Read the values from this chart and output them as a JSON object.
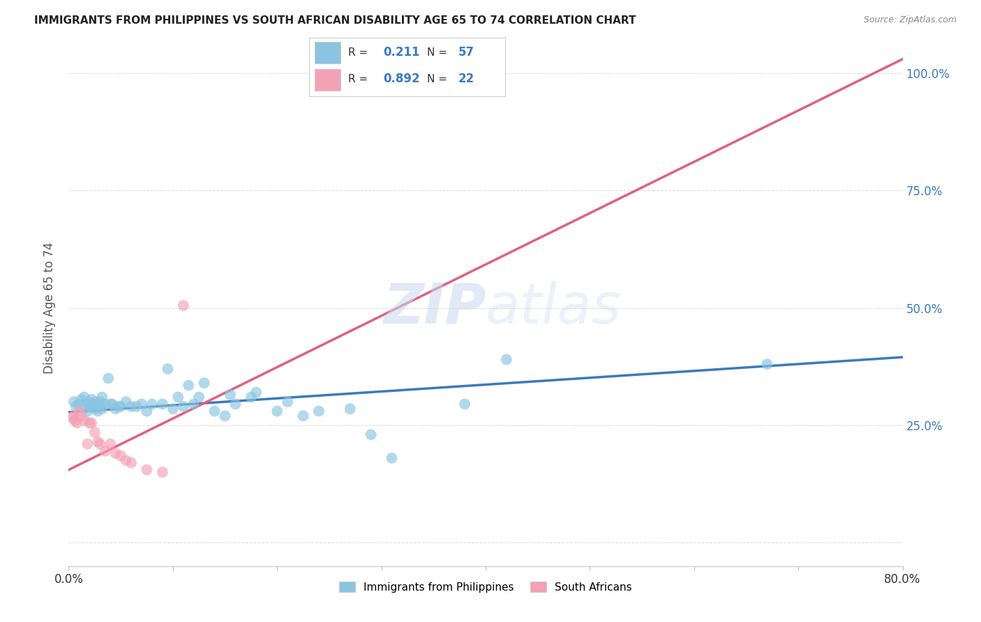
{
  "title": "IMMIGRANTS FROM PHILIPPINES VS SOUTH AFRICAN DISABILITY AGE 65 TO 74 CORRELATION CHART",
  "source": "Source: ZipAtlas.com",
  "ylabel": "Disability Age 65 to 74",
  "x_min": 0.0,
  "x_max": 0.8,
  "y_min": -0.05,
  "y_max": 1.05,
  "x_ticks": [
    0.0,
    0.1,
    0.2,
    0.3,
    0.4,
    0.5,
    0.6,
    0.7,
    0.8
  ],
  "y_ticks": [
    0.0,
    0.25,
    0.5,
    0.75,
    1.0
  ],
  "y_tick_labels": [
    "",
    "25.0%",
    "50.0%",
    "75.0%",
    "100.0%"
  ],
  "watermark": "ZIPatlas",
  "blue_color": "#89c4e1",
  "pink_color": "#f4a0b5",
  "blue_line_color": "#3a7abf",
  "pink_line_color": "#e06080",
  "legend_R_blue": "0.211",
  "legend_N_blue": "57",
  "legend_R_pink": "0.892",
  "legend_N_pink": "22",
  "blue_scatter_x": [
    0.005,
    0.007,
    0.01,
    0.012,
    0.015,
    0.015,
    0.018,
    0.018,
    0.02,
    0.022,
    0.022,
    0.025,
    0.025,
    0.028,
    0.028,
    0.03,
    0.03,
    0.032,
    0.032,
    0.035,
    0.038,
    0.04,
    0.042,
    0.045,
    0.048,
    0.05,
    0.055,
    0.06,
    0.065,
    0.07,
    0.075,
    0.08,
    0.09,
    0.095,
    0.1,
    0.105,
    0.11,
    0.115,
    0.12,
    0.125,
    0.13,
    0.14,
    0.15,
    0.155,
    0.16,
    0.175,
    0.18,
    0.2,
    0.21,
    0.225,
    0.24,
    0.27,
    0.29,
    0.31,
    0.38,
    0.42,
    0.67
  ],
  "blue_scatter_y": [
    0.3,
    0.29,
    0.295,
    0.305,
    0.285,
    0.31,
    0.28,
    0.3,
    0.29,
    0.295,
    0.305,
    0.285,
    0.3,
    0.28,
    0.295,
    0.29,
    0.3,
    0.31,
    0.285,
    0.295,
    0.35,
    0.295,
    0.295,
    0.285,
    0.29,
    0.29,
    0.3,
    0.29,
    0.29,
    0.295,
    0.28,
    0.295,
    0.295,
    0.37,
    0.285,
    0.31,
    0.29,
    0.335,
    0.295,
    0.31,
    0.34,
    0.28,
    0.27,
    0.315,
    0.295,
    0.31,
    0.32,
    0.28,
    0.3,
    0.27,
    0.28,
    0.285,
    0.23,
    0.18,
    0.295,
    0.39,
    0.38
  ],
  "pink_scatter_x": [
    0.004,
    0.005,
    0.006,
    0.008,
    0.01,
    0.012,
    0.015,
    0.018,
    0.02,
    0.022,
    0.025,
    0.028,
    0.03,
    0.035,
    0.04,
    0.045,
    0.05,
    0.055,
    0.06,
    0.075,
    0.09,
    0.11
  ],
  "pink_scatter_y": [
    0.265,
    0.27,
    0.26,
    0.255,
    0.28,
    0.27,
    0.26,
    0.21,
    0.255,
    0.255,
    0.235,
    0.215,
    0.21,
    0.195,
    0.21,
    0.19,
    0.185,
    0.175,
    0.17,
    0.155,
    0.15,
    0.505
  ],
  "blue_regression_x0": 0.0,
  "blue_regression_y0": 0.278,
  "blue_regression_x1": 0.8,
  "blue_regression_y1": 0.395,
  "pink_regression_x0": 0.0,
  "pink_regression_y0": 0.155,
  "pink_regression_x1": 0.8,
  "pink_regression_y1": 1.03,
  "grid_color": "#dddddd",
  "background_color": "#ffffff"
}
